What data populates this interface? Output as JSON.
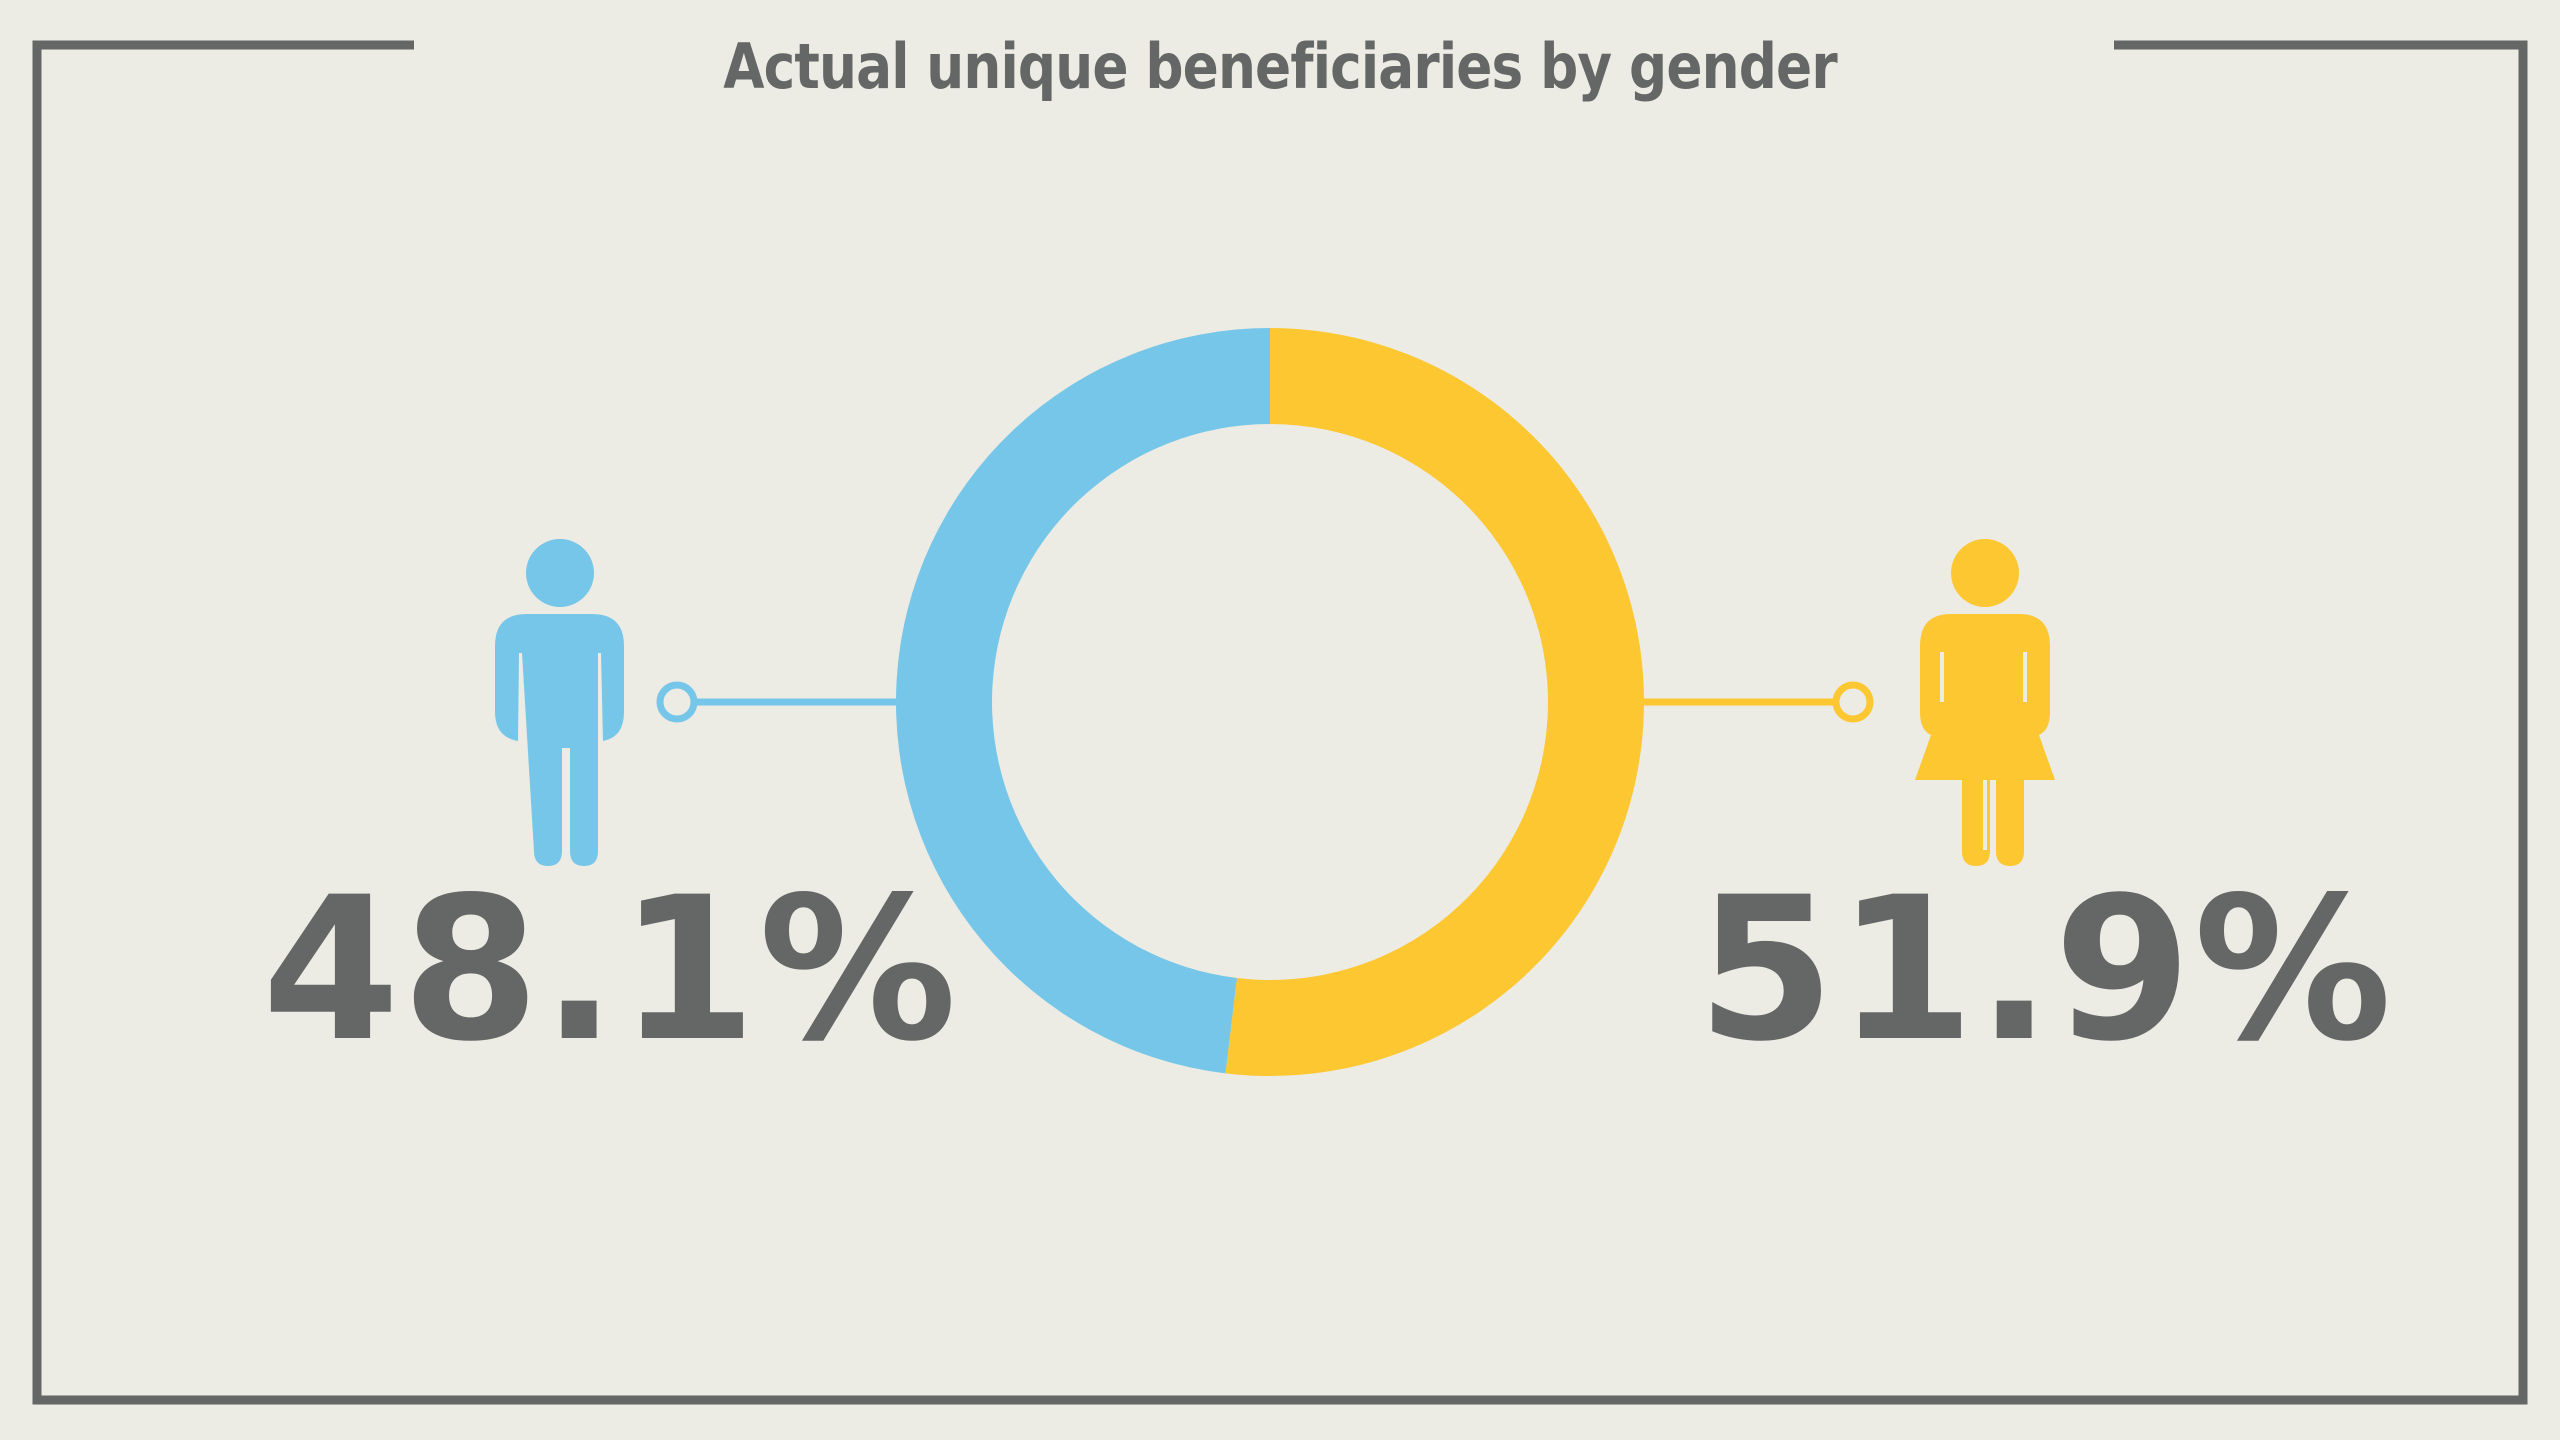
{
  "chart_data": {
    "type": "pie",
    "variant": "donut",
    "title": "Actual unique beneficiaries by gender",
    "series": [
      {
        "name": "",
        "value": 48.1,
        "label": "48.1%",
        "color": "#75c6e8",
        "icon": "male-person-icon"
      },
      {
        "name": "",
        "value": 51.9,
        "label": "51.9%",
        "color": "#fdc731",
        "icon": "female-person-icon"
      }
    ],
    "unit": "%",
    "legend": "none",
    "grid": false
  },
  "colors": {
    "background": "#ecebe4",
    "frame": "#646766",
    "text": "#646766",
    "male": "#75c6e8",
    "female": "#fdc731"
  }
}
